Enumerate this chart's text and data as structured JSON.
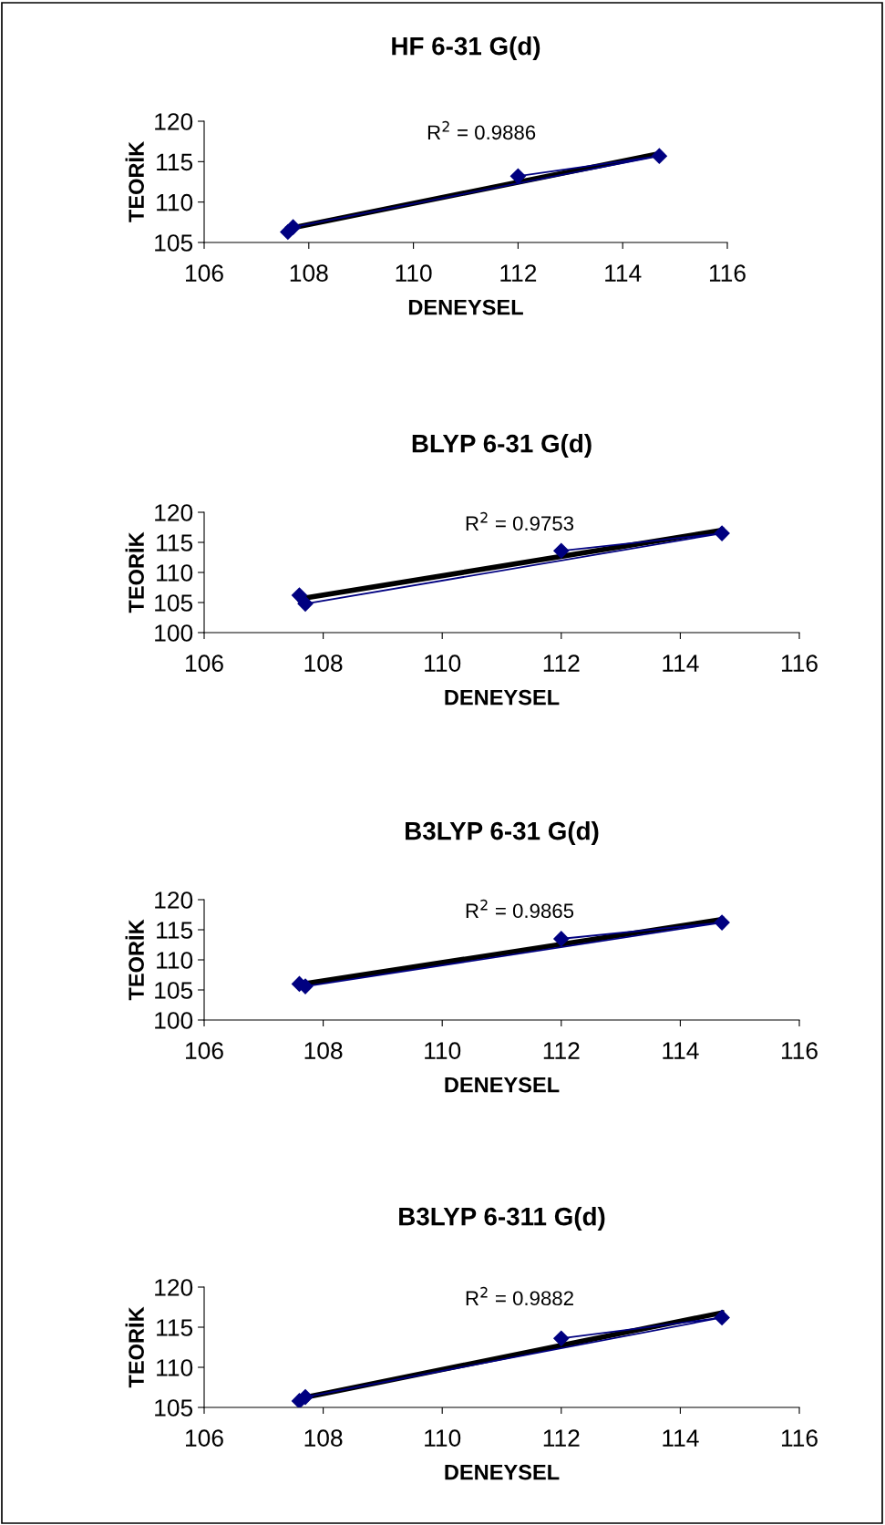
{
  "chart_data": [
    {
      "type": "line",
      "title": "HF 6-31 G(d)",
      "xlabel": "DENEYSEL",
      "ylabel": "TEORİK",
      "xlim": [
        106,
        116
      ],
      "xticks": [
        106,
        108,
        110,
        112,
        114,
        116
      ],
      "ylim": [
        105,
        120
      ],
      "yticks": [
        105,
        110,
        115,
        120
      ],
      "grid": false,
      "annotations": [
        "R$^{2}$ = 0.9886"
      ],
      "series": [
        {
          "color": "#000080",
          "marker": "diamond",
          "x": [
            107.6,
            107.7,
            114.7,
            112.0
          ],
          "values": [
            106.3,
            106.9,
            115.7,
            113.2
          ]
        },
        {
          "color": "#000000",
          "marker": "none",
          "x": [
            107.6,
            114.7
          ],
          "values": [
            106.7,
            116.0
          ]
        }
      ]
    },
    {
      "type": "line",
      "title": "BLYP 6-31 G(d)",
      "xlabel": "DENEYSEL",
      "ylabel": "TEORİK",
      "xlim": [
        106,
        116
      ],
      "xticks": [
        106,
        108,
        110,
        112,
        114,
        116
      ],
      "ylim": [
        100,
        120
      ],
      "yticks": [
        100,
        105,
        110,
        115,
        120
      ],
      "grid": false,
      "annotations": [
        "R$^{2}$ = 0.9753"
      ],
      "series": [
        {
          "color": "#000080",
          "marker": "diamond",
          "x": [
            107.6,
            107.7,
            114.7,
            112.0
          ],
          "values": [
            106.2,
            104.8,
            116.5,
            113.6
          ]
        },
        {
          "color": "#000000",
          "marker": "none",
          "x": [
            107.6,
            114.7
          ],
          "values": [
            105.6,
            117.0
          ]
        }
      ]
    },
    {
      "type": "line",
      "title": "B3LYP 6-31 G(d)",
      "xlabel": "DENEYSEL",
      "ylabel": "TEORİK",
      "xlim": [
        106,
        116
      ],
      "xticks": [
        106,
        108,
        110,
        112,
        114,
        116
      ],
      "ylim": [
        100,
        120
      ],
      "yticks": [
        100,
        105,
        110,
        115,
        120
      ],
      "grid": false,
      "annotations": [
        "R$^{2}$ = 0.9865"
      ],
      "series": [
        {
          "color": "#000080",
          "marker": "diamond",
          "x": [
            107.6,
            107.7,
            114.7,
            112.0
          ],
          "values": [
            106.0,
            105.6,
            116.2,
            113.5
          ]
        },
        {
          "color": "#000000",
          "marker": "none",
          "x": [
            107.6,
            114.7
          ],
          "values": [
            105.9,
            116.7
          ]
        }
      ]
    },
    {
      "type": "line",
      "title": "B3LYP 6-311 G(d)",
      "xlabel": "DENEYSEL",
      "ylabel": "TEORİK",
      "xlim": [
        106,
        116
      ],
      "xticks": [
        106,
        108,
        110,
        112,
        114,
        116
      ],
      "ylim": [
        105,
        120
      ],
      "yticks": [
        105,
        110,
        115,
        120
      ],
      "grid": false,
      "annotations": [
        "R$^{2}$ = 0.9882"
      ],
      "series": [
        {
          "color": "#000080",
          "marker": "diamond",
          "x": [
            107.6,
            107.7,
            114.7,
            112.0
          ],
          "values": [
            105.8,
            106.3,
            116.2,
            113.6
          ]
        },
        {
          "color": "#000000",
          "marker": "none",
          "x": [
            107.6,
            114.7
          ],
          "values": [
            106.1,
            116.8
          ]
        }
      ]
    }
  ]
}
